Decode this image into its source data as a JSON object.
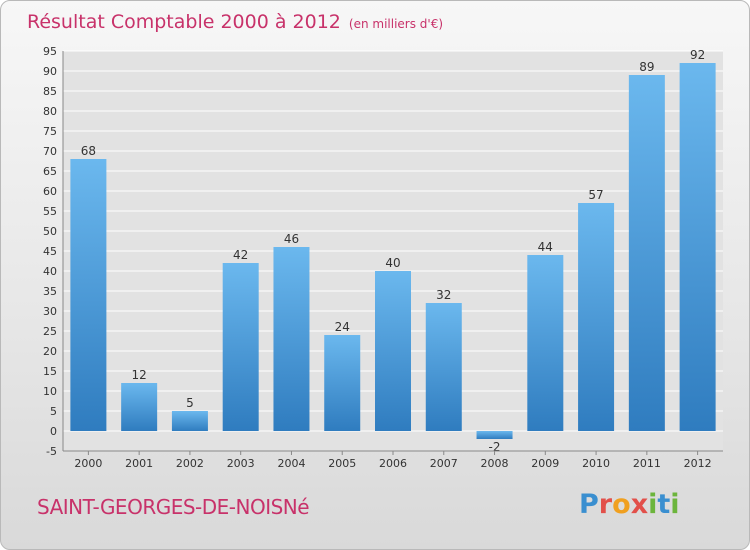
{
  "header": {
    "title": "Résultat Comptable 2000 à 2012",
    "subtitle": "(en milliers d'€)"
  },
  "footer": {
    "commune": "SAINT-GEORGES-DE-NOISNé",
    "logo_text": "Proxiti",
    "logo_letters": [
      "P",
      "r",
      "o",
      "x",
      "i",
      "t",
      "i"
    ],
    "logo_colors": [
      "#3a8fd0",
      "#e2504a",
      "#f0a020",
      "#e2504a",
      "#6cb53c",
      "#3a8fd0",
      "#6cb53c"
    ]
  },
  "colors": {
    "bar": "#4a9fde",
    "bar_light": "#6bb8ee",
    "bar_dark": "#2f7cbf",
    "grid": "#ffffff",
    "text": "#333333",
    "title": "#c8326a"
  },
  "chart_data": {
    "type": "bar",
    "categories": [
      "2000",
      "2001",
      "2002",
      "2003",
      "2004",
      "2005",
      "2006",
      "2007",
      "2008",
      "2009",
      "2010",
      "2011",
      "2012"
    ],
    "values": [
      68,
      12,
      5,
      42,
      46,
      24,
      40,
      32,
      -2,
      44,
      57,
      89,
      92
    ],
    "ylim": [
      -5,
      95
    ],
    "yticks": [
      -5,
      0,
      5,
      10,
      15,
      20,
      25,
      30,
      35,
      40,
      45,
      50,
      55,
      60,
      65,
      70,
      75,
      80,
      85,
      90,
      95
    ],
    "grid": true,
    "data_labels": true
  }
}
